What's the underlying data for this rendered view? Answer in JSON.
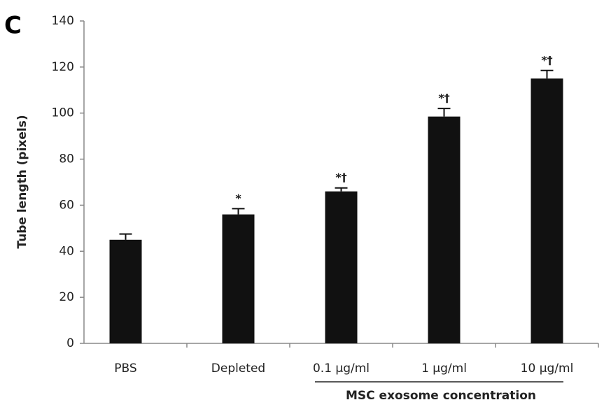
{
  "chart_data": {
    "type": "bar",
    "panel_label": "C",
    "ylabel": "Tube length (pixels)",
    "xlabel": "MSC exosome concentration",
    "categories": [
      "PBS",
      "Depleted",
      "0.1 µg/ml",
      "1 µg/ml",
      "10 µg/ml"
    ],
    "values": [
      45,
      56,
      66,
      98.5,
      115
    ],
    "errors": [
      2.5,
      2.5,
      1.5,
      3.5,
      3.5
    ],
    "annotations": [
      {
        "category": "Depleted",
        "text": "*"
      },
      {
        "category": "0.1 µg/ml",
        "text": "*†"
      },
      {
        "category": "1 µg/ml",
        "text": "*†"
      },
      {
        "category": "10 µg/ml",
        "text": "*†"
      }
    ],
    "color": "#111111",
    "ylim": [
      0,
      140
    ],
    "yticks": [
      0,
      20,
      40,
      60,
      80,
      100,
      120,
      140
    ],
    "grid": false
  }
}
